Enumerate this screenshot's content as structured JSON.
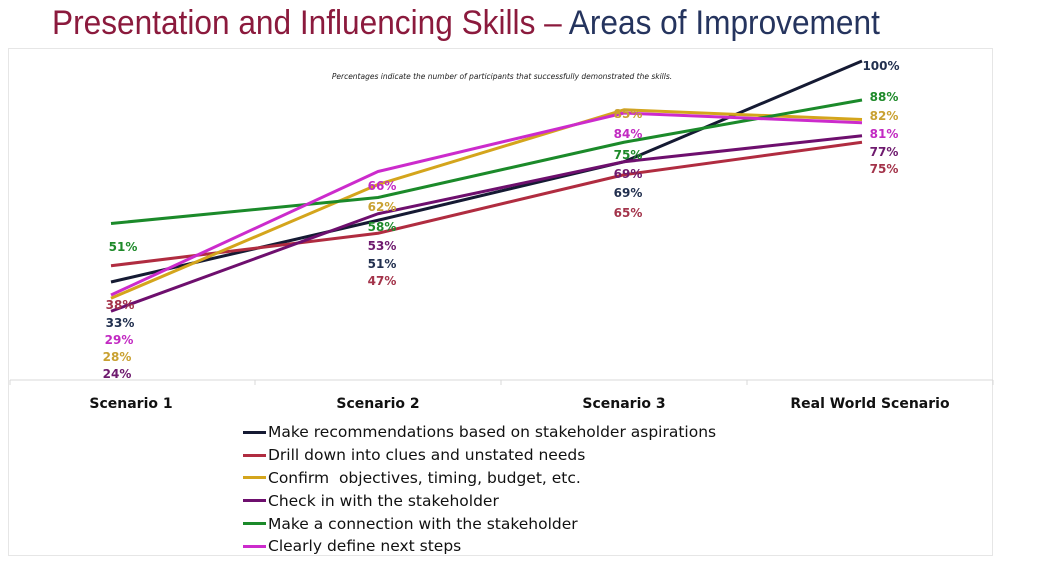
{
  "header": {
    "title_part1": "Presentation and Influencing Skills – ",
    "title_part2": "Areas of Improvement"
  },
  "chart_data": {
    "type": "line",
    "title": "Presentation and Influencing Skills – Areas of Improvement",
    "note": "Percentages indicate the number of participants that successfully demonstrated the skills.",
    "categories": [
      "Scenario 1",
      "Scenario 2",
      "Scenario 3",
      "Real World Scenario"
    ],
    "xlabel": "",
    "ylabel": "",
    "ylim": [
      0,
      100
    ],
    "series": [
      {
        "name": "Make recommendations based on stakeholder aspirations",
        "color": "#151a33",
        "values": [
          33,
          51,
          69,
          100
        ]
      },
      {
        "name": "Drill down into clues and unstated needs",
        "color": "#b02c40",
        "values": [
          38,
          47,
          65,
          75
        ]
      },
      {
        "name": "Confirm  objectives, timing, budget, etc.",
        "color": "#d4a51c",
        "values": [
          28,
          62,
          85,
          82
        ]
      },
      {
        "name": "Check in with the stakeholder",
        "color": "#6e0f6e",
        "values": [
          24,
          53,
          69,
          77
        ]
      },
      {
        "name": "Make a connection with the stakeholder",
        "color": "#1b8a2a",
        "values": [
          51,
          58,
          75,
          88
        ]
      },
      {
        "name": "Clearly define next steps",
        "color": "#cc2bcc",
        "values": [
          29,
          66,
          84,
          81
        ]
      }
    ],
    "data_labels": [
      [
        "33%",
        "51%",
        "69%",
        "100%"
      ],
      [
        "38%",
        "47%",
        "65%",
        "75%"
      ],
      [
        "28%",
        "62%",
        "85%",
        "82%"
      ],
      [
        "24%",
        "53%",
        "69%",
        "77%"
      ],
      [
        "51%",
        "58%",
        "75%",
        "88%"
      ],
      [
        "29%",
        "66%",
        "84%",
        "81%"
      ]
    ],
    "label_colors": [
      "#22304f",
      "#a3334a",
      "#c9a132",
      "#6e1a6e",
      "#1e8a2a",
      "#c22ac2"
    ],
    "legend": "bottom"
  }
}
